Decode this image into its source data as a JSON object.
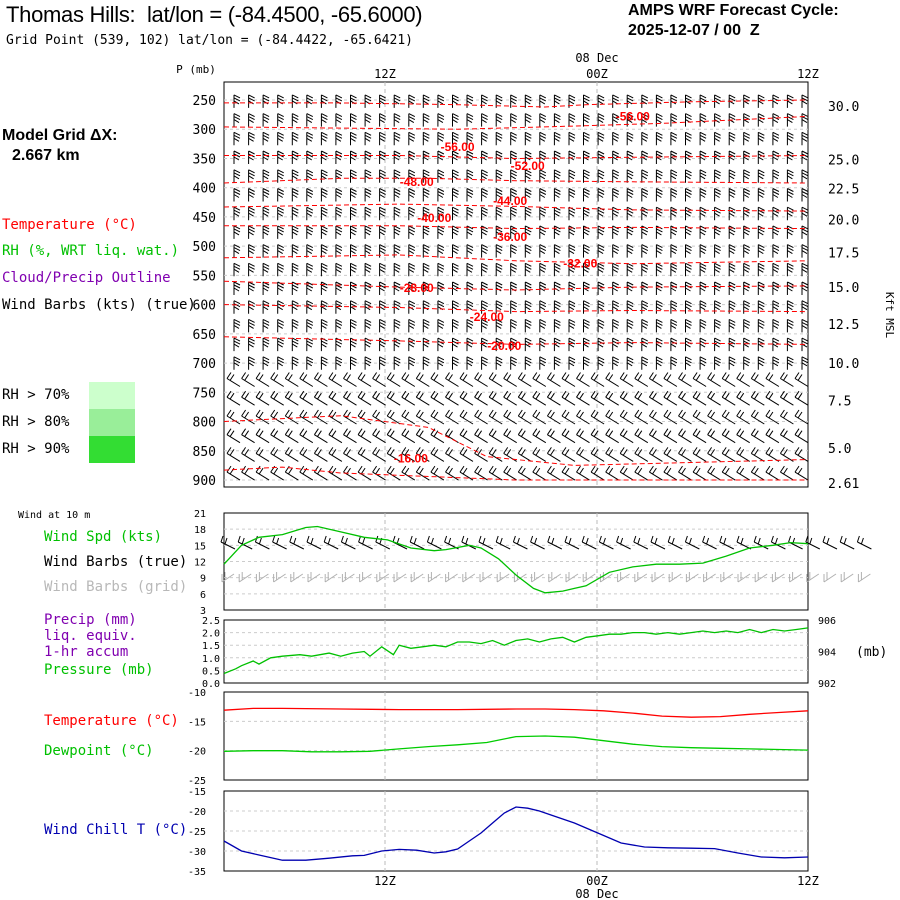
{
  "header": {
    "title": "Thomas Hills:  lat/lon = (-84.4500, -65.6000)",
    "grid_point": "Grid Point (539, 102) lat/lon = (-84.4422, -65.6421)",
    "cycle_label": "AMPS WRF Forecast Cycle:",
    "cycle_value": "2025-12-07 / 00  Z"
  },
  "colors": {
    "temperature": "#ff0000",
    "rh": "#00c000",
    "cloud": "#8000b0",
    "wind": "#000000",
    "wind_grid": "#b0b0b0",
    "dewpoint": "#00cc00",
    "wind_chill": "#0000b0",
    "rh70": "#ccffcc",
    "rh80": "#99ee99",
    "rh90": "#33dd33"
  },
  "legend": {
    "model_grid_line1": "Model Grid ΔX:",
    "model_grid_line2": "2.667 km",
    "temperature": "Temperature (°C)",
    "rh": "RH (%, WRT liq. wat.)",
    "cloud": "Cloud/Precip Outline",
    "wind": "Wind Barbs (kts) (true)",
    "rh_levels": [
      "RH > 70%",
      "RH > 80%",
      "RH > 90%"
    ]
  },
  "time_axis": {
    "ticks": [
      "12Z",
      "00Z",
      "12Z"
    ],
    "date_top": "08 Dec",
    "date_bottom": "08 Dec"
  },
  "chart_data": [
    {
      "type": "line",
      "id": "upper-air",
      "yaxis_title": "P (mb)",
      "y_ticks": [
        250,
        300,
        350,
        400,
        450,
        500,
        550,
        600,
        650,
        700,
        750,
        800,
        850,
        900
      ],
      "right_axis_label": "Kft MSL",
      "right_ticks": [
        {
          "label": "30.0",
          "p": 260
        },
        {
          "label": "25.0",
          "p": 352
        },
        {
          "label": "22.5",
          "p": 401
        },
        {
          "label": "20.0",
          "p": 454
        },
        {
          "label": "17.5",
          "p": 511
        },
        {
          "label": "15.0",
          "p": 570
        },
        {
          "label": "12.5",
          "p": 633
        },
        {
          "label": "10.0",
          "p": 700
        },
        {
          "label": "7.5",
          "p": 764
        },
        {
          "label": "5.0",
          "p": 845
        },
        {
          "label": "2.61",
          "p": 905
        }
      ],
      "temperature_labels": [
        {
          "text": "-56.00",
          "t": 0.7,
          "p": 278
        },
        {
          "text": "-56.00",
          "t": 0.4,
          "p": 330
        },
        {
          "text": "-52.00",
          "t": 0.52,
          "p": 363
        },
        {
          "text": "-48.00",
          "t": 0.33,
          "p": 390
        },
        {
          "text": "-44.00",
          "t": 0.49,
          "p": 423
        },
        {
          "text": "-40.00",
          "t": 0.36,
          "p": 452
        },
        {
          "text": "-36.00",
          "t": 0.49,
          "p": 484
        },
        {
          "text": "-32.00",
          "t": 0.61,
          "p": 530
        },
        {
          "text": "-28.00",
          "t": 0.33,
          "p": 572
        },
        {
          "text": "-24.00",
          "t": 0.45,
          "p": 621
        },
        {
          "text": "-20.00",
          "t": 0.48,
          "p": 671
        },
        {
          "text": "-16.00",
          "t": 0.32,
          "p": 863
        }
      ]
    },
    {
      "type": "line",
      "id": "wind-10m",
      "title": "Wind at 10 m",
      "y_ticks": [
        3,
        6,
        9,
        12,
        15,
        18,
        21
      ],
      "ylim": [
        3,
        21
      ],
      "series": [
        {
          "name": "Wind Spd (kts)",
          "x": [
            0,
            0.03,
            0.06,
            0.1,
            0.14,
            0.16,
            0.2,
            0.24,
            0.28,
            0.32,
            0.36,
            0.38,
            0.42,
            0.44,
            0.47,
            0.5,
            0.53,
            0.55,
            0.58,
            0.6,
            0.62,
            0.66,
            0.7,
            0.74,
            0.78,
            0.82,
            0.86,
            0.9,
            0.94,
            0.97,
            1.0
          ],
          "values": [
            11.5,
            15.0,
            16.5,
            17.0,
            18.3,
            18.5,
            17.5,
            16.5,
            16.0,
            14.5,
            14.0,
            14.2,
            15.0,
            14.5,
            12.5,
            9.5,
            7.0,
            6.2,
            6.5,
            7.0,
            7.5,
            10.0,
            11.0,
            11.5,
            11.5,
            11.7,
            13.0,
            14.5,
            15.0,
            15.5,
            15.3
          ]
        }
      ],
      "labels": [
        "Wind Spd (kts)",
        "Wind Barbs (true)",
        "Wind Barbs (grid)"
      ]
    },
    {
      "type": "line",
      "id": "precip-pressure",
      "y_ticks_left": [
        "0.0",
        "0.5",
        "1.0",
        "1.5",
        "2.0",
        "2.5"
      ],
      "ylim_left": [
        0,
        2.5
      ],
      "y_ticks_right": [
        "902",
        "904",
        "906"
      ],
      "ylim_right": [
        902,
        906
      ],
      "right_unit": "(mb)",
      "labels": [
        "Precip (mm)",
        "liq. equiv.",
        "1-hr accum",
        "Pressure (mb)"
      ],
      "series": [
        {
          "name": "Pressure (mb)",
          "x": [
            0,
            0.02,
            0.03,
            0.05,
            0.06,
            0.08,
            0.1,
            0.13,
            0.15,
            0.18,
            0.2,
            0.22,
            0.24,
            0.25,
            0.27,
            0.29,
            0.3,
            0.32,
            0.34,
            0.36,
            0.38,
            0.4,
            0.42,
            0.44,
            0.46,
            0.48,
            0.5,
            0.52,
            0.54,
            0.56,
            0.58,
            0.6,
            0.62,
            0.64,
            0.66,
            0.68,
            0.7,
            0.72,
            0.74,
            0.76,
            0.78,
            0.8,
            0.82,
            0.84,
            0.86,
            0.88,
            0.9,
            0.92,
            0.94,
            0.96,
            0.98,
            1.0
          ],
          "values": [
            902.6,
            902.9,
            903.1,
            903.4,
            903.2,
            903.6,
            903.7,
            903.8,
            903.7,
            903.9,
            903.7,
            903.9,
            904.0,
            903.7,
            904.3,
            903.8,
            904.4,
            904.2,
            904.3,
            904.4,
            904.3,
            904.6,
            904.6,
            904.5,
            904.7,
            904.4,
            904.7,
            904.8,
            904.6,
            904.8,
            904.9,
            904.6,
            904.9,
            905.0,
            905.1,
            905.1,
            905.2,
            905.2,
            905.1,
            905.2,
            905.1,
            905.2,
            905.3,
            905.2,
            905.3,
            905.2,
            905.4,
            905.2,
            905.4,
            905.3,
            905.4,
            905.5
          ]
        }
      ]
    },
    {
      "type": "line",
      "id": "temp-dewpoint",
      "y_ticks": [
        -25,
        -20,
        -15,
        -10
      ],
      "ylim": [
        -25,
        -10
      ],
      "labels": [
        "Temperature (°C)",
        "Dewpoint (°C)"
      ],
      "series": [
        {
          "name": "Temperature (°C)",
          "x": [
            0,
            0.05,
            0.1,
            0.2,
            0.3,
            0.4,
            0.5,
            0.55,
            0.6,
            0.65,
            0.7,
            0.75,
            0.8,
            0.85,
            0.9,
            0.95,
            1.0
          ],
          "values": [
            -13.1,
            -12.8,
            -12.8,
            -12.9,
            -13.0,
            -13.0,
            -12.9,
            -12.9,
            -13.0,
            -13.2,
            -13.6,
            -14.1,
            -14.3,
            -14.2,
            -13.8,
            -13.5,
            -13.2
          ]
        },
        {
          "name": "Dewpoint (°C)",
          "x": [
            0,
            0.05,
            0.1,
            0.15,
            0.2,
            0.25,
            0.3,
            0.35,
            0.4,
            0.45,
            0.5,
            0.55,
            0.6,
            0.65,
            0.7,
            0.75,
            0.8,
            0.85,
            0.9,
            0.95,
            1.0
          ],
          "values": [
            -20.1,
            -20.0,
            -20.0,
            -20.2,
            -20.2,
            -20.1,
            -19.7,
            -19.3,
            -19.0,
            -18.6,
            -17.6,
            -17.5,
            -17.7,
            -18.3,
            -18.9,
            -19.3,
            -19.5,
            -19.6,
            -19.7,
            -19.8,
            -19.9
          ]
        }
      ]
    },
    {
      "type": "line",
      "id": "wind-chill",
      "y_ticks": [
        -35,
        -30,
        -25,
        -20,
        -15
      ],
      "ylim": [
        -35,
        -15
      ],
      "labels": [
        "Wind Chill T (°C)"
      ],
      "series": [
        {
          "name": "Wind Chill T (°C)",
          "x": [
            0,
            0.03,
            0.06,
            0.1,
            0.14,
            0.18,
            0.22,
            0.24,
            0.27,
            0.3,
            0.33,
            0.36,
            0.38,
            0.4,
            0.42,
            0.44,
            0.46,
            0.48,
            0.5,
            0.52,
            0.54,
            0.56,
            0.6,
            0.64,
            0.68,
            0.72,
            0.76,
            0.8,
            0.84,
            0.88,
            0.92,
            0.96,
            1.0
          ],
          "values": [
            -27.5,
            -30.0,
            -31.0,
            -32.3,
            -32.3,
            -31.8,
            -31.2,
            -31.1,
            -30.0,
            -29.6,
            -29.8,
            -30.5,
            -30.2,
            -29.5,
            -27.5,
            -25.5,
            -23.0,
            -20.5,
            -19.0,
            -19.3,
            -20.0,
            -21.0,
            -23.0,
            -25.5,
            -28.0,
            -29.0,
            -29.2,
            -29.3,
            -29.4,
            -30.5,
            -31.5,
            -31.7,
            -31.5
          ]
        }
      ]
    }
  ]
}
